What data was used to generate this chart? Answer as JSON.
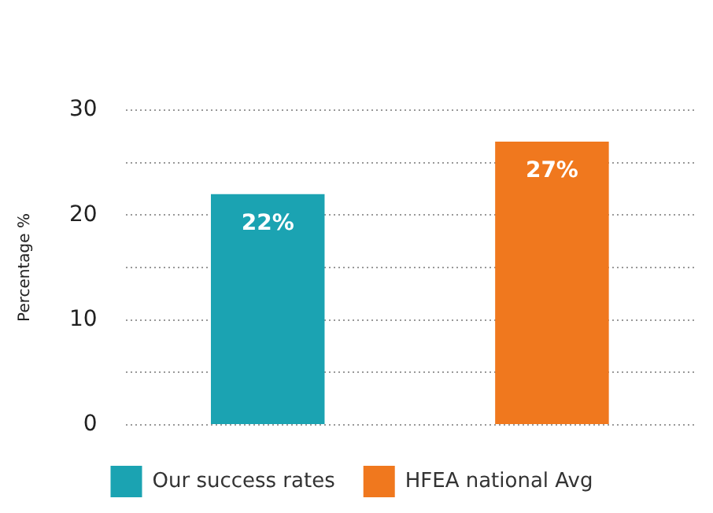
{
  "chart_data": {
    "type": "bar",
    "ylabel": "Percentage %",
    "categories": [
      null,
      null
    ],
    "series": [
      {
        "name": "Our success rates",
        "color": "#1ba3b2",
        "values": [
          22,
          null
        ],
        "value_labels": [
          "22%",
          null
        ]
      },
      {
        "name": "HFEA national Avg",
        "color": "#f0781e",
        "values": [
          null,
          27
        ],
        "value_labels": [
          null,
          "27%"
        ]
      }
    ],
    "ylim": [
      0,
      30
    ],
    "yticks": [
      0,
      {
        "value": 5,
        "label": null
      },
      10,
      {
        "value": 15,
        "label": null
      },
      20,
      {
        "value": 25,
        "label": null
      },
      30
    ],
    "grid": "y",
    "legend": "bottom"
  }
}
